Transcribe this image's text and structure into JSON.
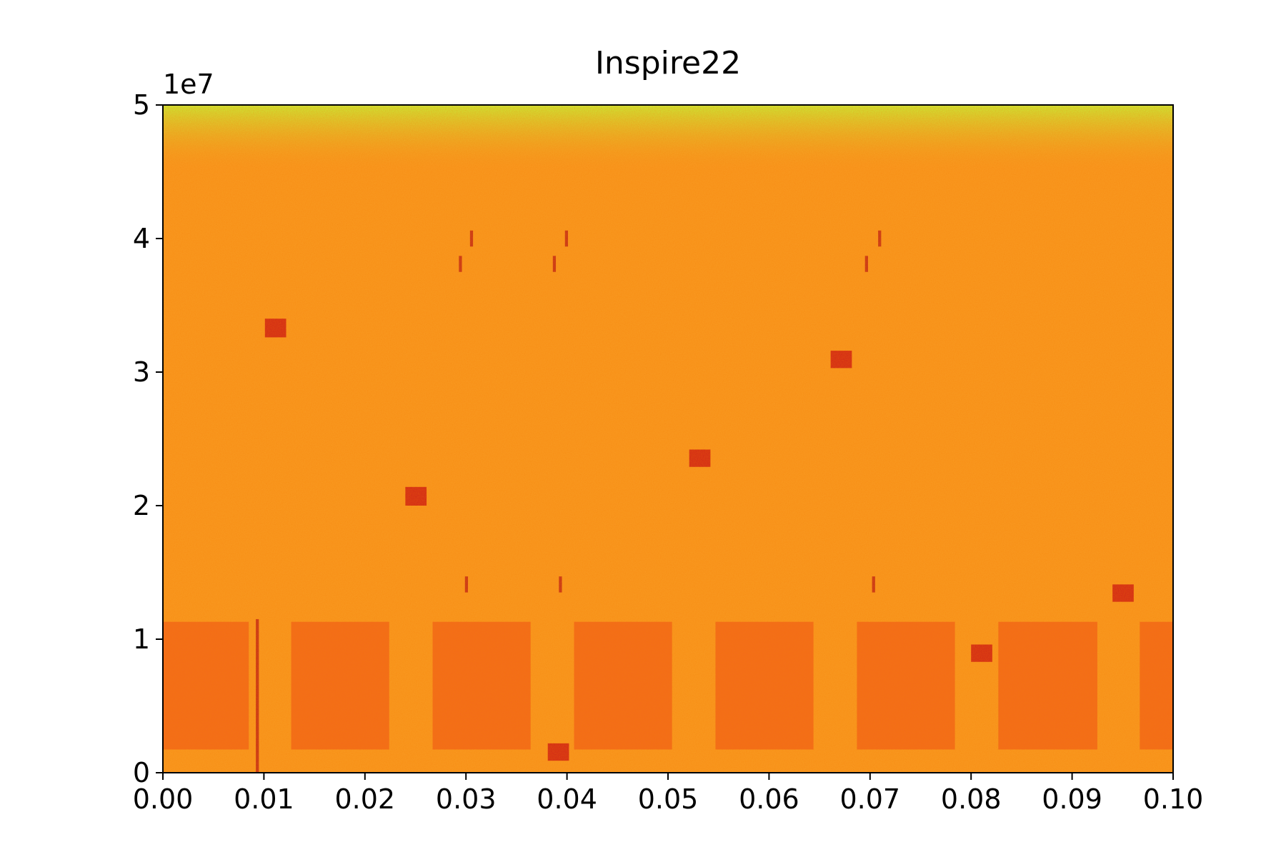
{
  "chart_data": {
    "type": "spectrogram",
    "title": "Inspire22",
    "y_offset_label": "1e7",
    "xlim": [
      0,
      0.1
    ],
    "ylim": [
      0,
      50000000
    ],
    "xticks": [
      {
        "value": 0,
        "label": "0.00"
      },
      {
        "value": 0.01,
        "label": "0.01"
      },
      {
        "value": 0.02,
        "label": "0.02"
      },
      {
        "value": 0.03,
        "label": "0.03"
      },
      {
        "value": 0.04,
        "label": "0.04"
      },
      {
        "value": 0.05,
        "label": "0.05"
      },
      {
        "value": 0.06,
        "label": "0.06"
      },
      {
        "value": 0.07,
        "label": "0.07"
      },
      {
        "value": 0.08,
        "label": "0.08"
      },
      {
        "value": 0.09,
        "label": "0.09"
      },
      {
        "value": 0.1,
        "label": "0.10"
      }
    ],
    "yticks": [
      {
        "value": 0,
        "label": "0"
      },
      {
        "value": 10000000,
        "label": "1"
      },
      {
        "value": 20000000,
        "label": "2"
      },
      {
        "value": 30000000,
        "label": "3"
      },
      {
        "value": 40000000,
        "label": "4"
      },
      {
        "value": 50000000,
        "label": "5"
      }
    ],
    "background_color": "#f99a22",
    "top_color": "#c8f03a",
    "wideband_color": "#f2661c",
    "burst_color": "#cf2118",
    "pulse_color": "#c0261a",
    "wideband": [
      {
        "x": [
          0,
          0.0085
        ],
        "y": [
          1740000,
          11300000
        ]
      },
      {
        "x": [
          0.0127,
          0.0224
        ],
        "y": [
          1740000,
          11300000
        ]
      },
      {
        "x": [
          0.0267,
          0.0364
        ],
        "y": [
          1740000,
          11300000
        ]
      },
      {
        "x": [
          0.0407,
          0.0504
        ],
        "y": [
          1740000,
          11300000
        ]
      },
      {
        "x": [
          0.0547,
          0.0644
        ],
        "y": [
          1740000,
          11300000
        ]
      },
      {
        "x": [
          0.0687,
          0.0784
        ],
        "y": [
          1740000,
          11300000
        ]
      },
      {
        "x": [
          0.0827,
          0.0925
        ],
        "y": [
          1740000,
          11300000
        ]
      },
      {
        "x": [
          0.0967,
          0.1
        ],
        "y": [
          1740000,
          11300000
        ]
      }
    ],
    "bursts": [
      {
        "x": [
          0.0101,
          0.0122
        ],
        "y": [
          32600000,
          34000000
        ]
      },
      {
        "x": [
          0.024,
          0.0261
        ],
        "y": [
          20000000,
          21400000
        ]
      },
      {
        "x": [
          0.0381,
          0.0402
        ],
        "y": [
          900000,
          2200000
        ]
      },
      {
        "x": [
          0.0521,
          0.0542
        ],
        "y": [
          22900000,
          24200000
        ]
      },
      {
        "x": [
          0.0661,
          0.0682
        ],
        "y": [
          30300000,
          31600000
        ]
      },
      {
        "x": [
          0.08,
          0.0821
        ],
        "y": [
          8300000,
          9600000
        ]
      },
      {
        "x": [
          0.094,
          0.0961
        ],
        "y": [
          12800000,
          14100000
        ]
      }
    ],
    "pulses": [
      {
        "x": [
          0.0304,
          0.0307
        ],
        "y": [
          39400000,
          40600000
        ]
      },
      {
        "x": [
          0.0398,
          0.0401
        ],
        "y": [
          39400000,
          40600000
        ]
      },
      {
        "x": [
          0.0708,
          0.0711
        ],
        "y": [
          39400000,
          40600000
        ]
      },
      {
        "x": [
          0.0293,
          0.0296
        ],
        "y": [
          37500000,
          38700000
        ]
      },
      {
        "x": [
          0.0386,
          0.0389
        ],
        "y": [
          37500000,
          38700000
        ]
      },
      {
        "x": [
          0.0695,
          0.0698
        ],
        "y": [
          37500000,
          38700000
        ]
      },
      {
        "x": [
          0.0299,
          0.0302
        ],
        "y": [
          13500000,
          14700000
        ]
      },
      {
        "x": [
          0.0392,
          0.0395
        ],
        "y": [
          13500000,
          14700000
        ]
      },
      {
        "x": [
          0.0702,
          0.0705
        ],
        "y": [
          13500000,
          14700000
        ]
      },
      {
        "x": [
          0.0092,
          0.0095
        ],
        "y": [
          0,
          11500000
        ]
      }
    ]
  }
}
